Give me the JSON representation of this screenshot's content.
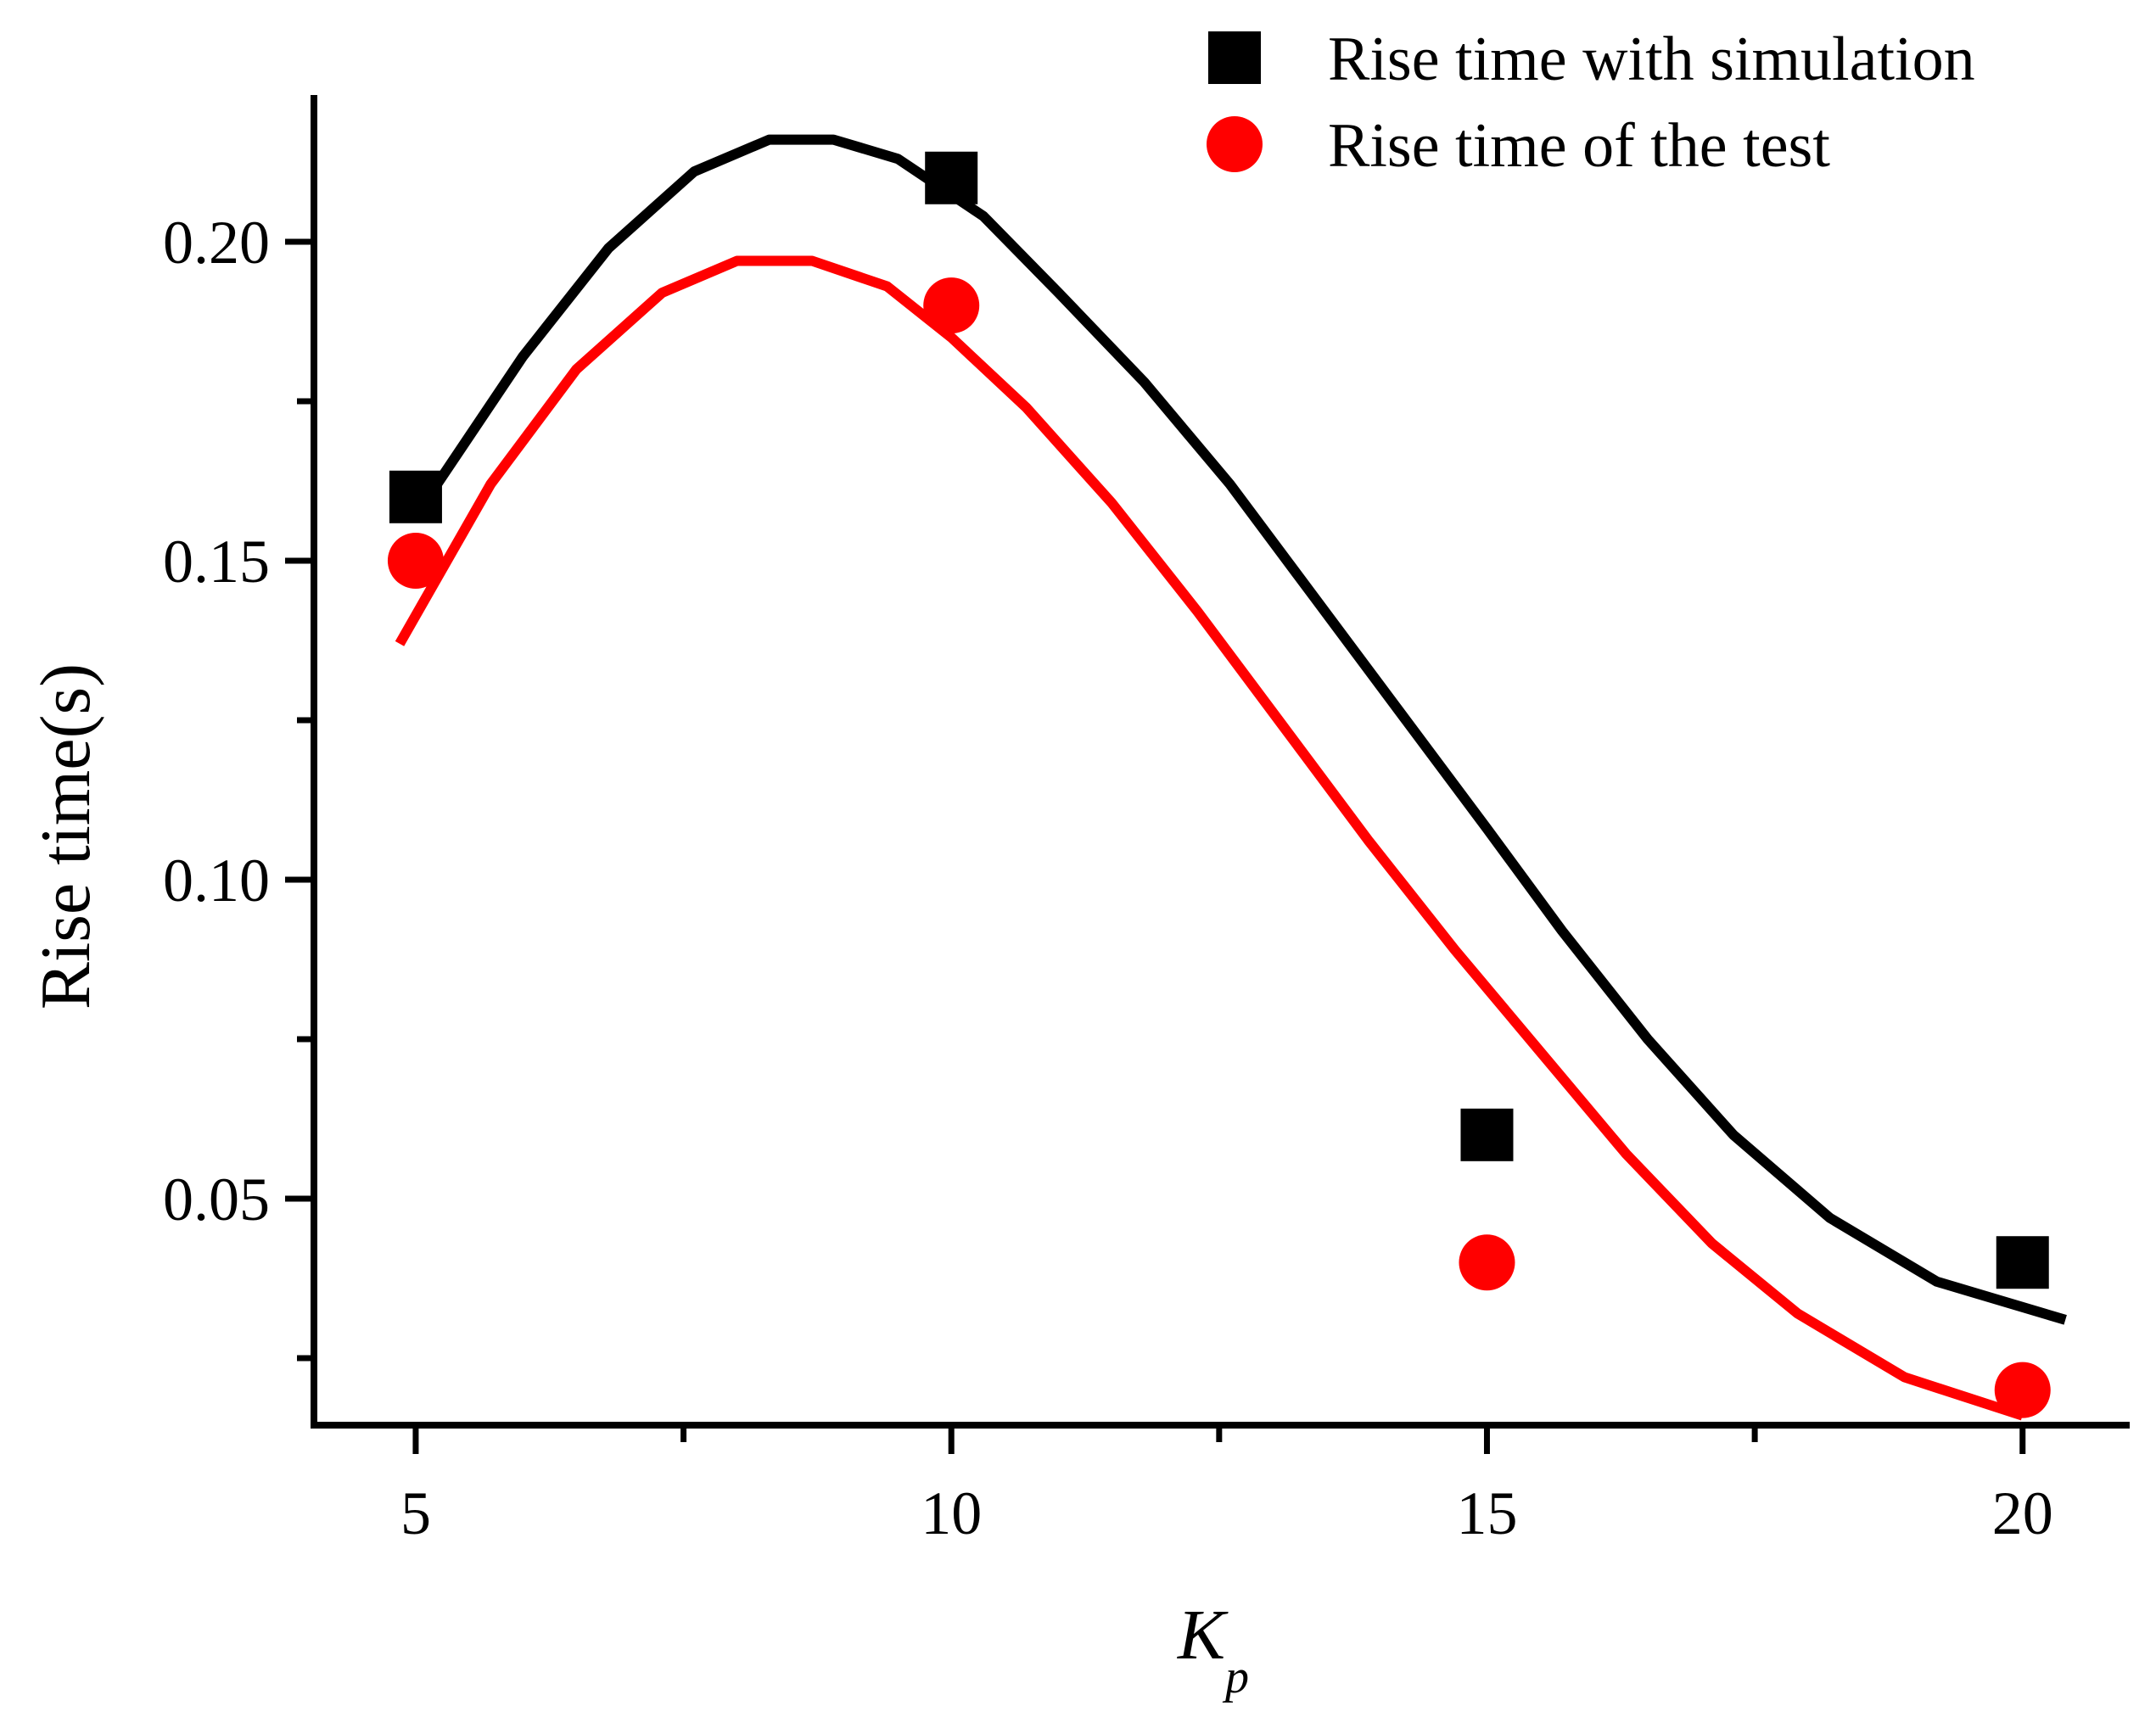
{
  "chart_data": {
    "type": "scatter",
    "title": "",
    "xlabel": {
      "main": "K",
      "subscript": "p"
    },
    "ylabel": "Rise time(s)",
    "xlim": [
      4.05,
      21.0
    ],
    "ylim": [
      0.0145,
      0.223
    ],
    "x_ticks": [
      5,
      10,
      15,
      20
    ],
    "x_tick_labels": [
      "5",
      "10",
      "15",
      "20"
    ],
    "x_minor_ticks": [
      7.5,
      12.5,
      17.5
    ],
    "y_ticks": [
      0.05,
      0.1,
      0.15,
      0.2
    ],
    "y_tick_labels": [
      "0.05",
      "0.10",
      "0.15",
      "0.20"
    ],
    "y_minor_ticks": [
      0.025,
      0.075,
      0.125,
      0.175,
      0.225
    ],
    "grid": false,
    "legend_position": "top-right",
    "series": [
      {
        "name": "Rise time with simulation",
        "color": "#000000",
        "marker": "square",
        "points": {
          "x": [
            5,
            10,
            15,
            20
          ],
          "y": [
            0.16,
            0.21,
            0.06,
            0.04
          ]
        },
        "fit_line": {
          "x": [
            5.0,
            6.0,
            6.8,
            7.6,
            8.3,
            8.9,
            9.5,
            10.3,
            11.0,
            11.8,
            12.6,
            13.4,
            14.2,
            15.0,
            15.7,
            16.5,
            17.3,
            18.2,
            19.2,
            20.4
          ],
          "y": [
            0.157,
            0.182,
            0.199,
            0.211,
            0.216,
            0.216,
            0.213,
            0.204,
            0.192,
            0.178,
            0.162,
            0.144,
            0.126,
            0.108,
            0.092,
            0.075,
            0.06,
            0.047,
            0.037,
            0.031
          ]
        }
      },
      {
        "name": "Rise time of the test",
        "color": "#ff0000",
        "marker": "circle",
        "points": {
          "x": [
            5,
            10,
            15,
            20
          ],
          "y": [
            0.15,
            0.19,
            0.04,
            0.02
          ]
        },
        "fit_line": {
          "x": [
            4.85,
            5.7,
            6.5,
            7.3,
            8.0,
            8.7,
            9.4,
            10.0,
            10.7,
            11.5,
            12.3,
            13.1,
            13.9,
            14.7,
            15.5,
            16.3,
            17.1,
            17.9,
            18.9,
            20.0
          ],
          "y": [
            0.137,
            0.162,
            0.18,
            0.192,
            0.197,
            0.197,
            0.193,
            0.185,
            0.174,
            0.159,
            0.142,
            0.124,
            0.106,
            0.089,
            0.073,
            0.057,
            0.043,
            0.032,
            0.022,
            0.016
          ]
        }
      }
    ]
  }
}
